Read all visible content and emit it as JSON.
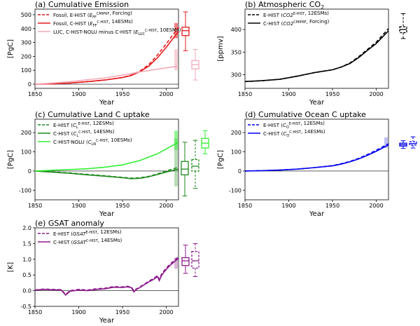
{
  "chart_data": [
    {
      "type": "line",
      "title": "(a) Cumulative Emission",
      "xlabel": "Year",
      "ylabel": "[PgC]",
      "xlim": [
        1850,
        2014
      ],
      "ylim": [
        -30,
        540
      ],
      "x_ticks": [
        1850,
        1900,
        1950,
        2000
      ],
      "y_ticks": [
        0,
        100,
        200,
        300,
        400,
        500
      ],
      "zero_line": true,
      "legend_position": "top-left",
      "series": [
        {
          "name": "Fossil, E-HIST (E_FF^CMIP6F, Forcing)",
          "color": "#e41a1c",
          "style": "dashed",
          "x": [
            1850,
            1870,
            1890,
            1910,
            1930,
            1950,
            1960,
            1970,
            1980,
            1990,
            2000,
            2014
          ],
          "y": [
            0,
            3,
            8,
            18,
            30,
            48,
            65,
            95,
            140,
            210,
            290,
            410
          ]
        },
        {
          "name": "Fossil, C-HIST (E_FF^C-HIST, 14ESMs)",
          "color": "#e41a1c",
          "style": "solid",
          "x": [
            1850,
            1870,
            1890,
            1910,
            1930,
            1950,
            1960,
            1970,
            1980,
            1990,
            2000,
            2014
          ],
          "y": [
            0,
            3,
            8,
            18,
            30,
            48,
            62,
            90,
            130,
            190,
            265,
            380
          ]
        },
        {
          "name": "LUC, C-HIST-NOLU minus C-HIST (E_LUC^C-HIST, 10ESMs)",
          "color": "#f4a9b8",
          "style": "solid",
          "x": [
            1850,
            1870,
            1890,
            1910,
            1930,
            1950,
            1970,
            1990,
            2014
          ],
          "y": [
            0,
            8,
            18,
            32,
            45,
            65,
            88,
            108,
            130
          ]
        }
      ],
      "boxes": [
        {
          "color": "#e41a1c",
          "style": "solid",
          "whisker_low": 240,
          "q1": 350,
          "median": 385,
          "q3": 410,
          "whisker_high": 520
        },
        {
          "color": "#f4a9b8",
          "style": "solid",
          "whisker_low": 30,
          "q1": 110,
          "median": 140,
          "q3": 170,
          "whisker_high": 250
        }
      ],
      "end_markers": [
        {
          "color": "#e41a1c",
          "low": 330,
          "high": 440
        },
        {
          "color": "#f4a9b8",
          "low": 100,
          "high": 250
        }
      ]
    },
    {
      "type": "line",
      "title": "(b) Atmospheric CO",
      "title_sub": "2",
      "xlabel": "Year",
      "ylabel": "[ppmv]",
      "xlim": [
        1850,
        2014
      ],
      "ylim": [
        270,
        445
      ],
      "x_ticks": [
        1850,
        1900,
        1950,
        2000
      ],
      "y_ticks": [
        300,
        350,
        400
      ],
      "zero_line": false,
      "legend_position": "top-left",
      "series": [
        {
          "name": "E-HIST (CO2^E-HIST, 12ESMs)",
          "color": "#000000",
          "style": "dashed",
          "x": [
            1850,
            1870,
            1890,
            1910,
            1930,
            1950,
            1960,
            1970,
            1980,
            1990,
            2000,
            2014
          ],
          "y": [
            285,
            287,
            290,
            297,
            305,
            311,
            317,
            326,
            340,
            356,
            372,
            402
          ]
        },
        {
          "name": "C-HIST (CO2^CMIP6F, Forcing)",
          "color": "#000000",
          "style": "solid",
          "x": [
            1850,
            1870,
            1890,
            1910,
            1930,
            1950,
            1960,
            1970,
            1980,
            1990,
            2000,
            2014
          ],
          "y": [
            285,
            287,
            290,
            297,
            305,
            311,
            317,
            325,
            338,
            354,
            369,
            397
          ]
        }
      ],
      "boxes": [
        {
          "color": "#000000",
          "style": "dashed",
          "whisker_low": 380,
          "q1": 393,
          "median": 400,
          "q3": 406,
          "whisker_high": 435
        }
      ],
      "end_markers": []
    },
    {
      "type": "line",
      "title": "(c) Cumulative Land C uptake",
      "xlabel": "Year",
      "ylabel": "[PgC]",
      "xlim": [
        1850,
        2014
      ],
      "ylim": [
        -150,
        270
      ],
      "x_ticks": [
        1850,
        1900,
        1950,
        2000
      ],
      "y_ticks": [
        -100,
        0,
        100,
        200
      ],
      "zero_line": true,
      "legend_position": "top-left",
      "series": [
        {
          "name": "E-HIST (C_L^E-HIST, 12ESMs)",
          "color": "#1e8a1e",
          "style": "dashed",
          "x": [
            1850,
            1870,
            1890,
            1910,
            1930,
            1950,
            1960,
            1970,
            1980,
            1990,
            2000,
            2014
          ],
          "y": [
            0,
            -5,
            -10,
            -18,
            -25,
            -33,
            -37,
            -35,
            -28,
            -15,
            0,
            20
          ]
        },
        {
          "name": "C-HIST (C_L^C-HIST, 14ESMs)",
          "color": "#1e8a1e",
          "style": "solid",
          "x": [
            1850,
            1870,
            1890,
            1910,
            1930,
            1950,
            1960,
            1970,
            1980,
            1990,
            2000,
            2014
          ],
          "y": [
            0,
            -6,
            -12,
            -20,
            -27,
            -35,
            -40,
            -38,
            -30,
            -18,
            -5,
            10
          ]
        },
        {
          "name": "C-HIST-NOLU (C_LN^C-HIST, 10ESMs)",
          "color": "#33ee33",
          "style": "solid",
          "x": [
            1850,
            1870,
            1890,
            1910,
            1930,
            1950,
            1970,
            1990,
            2014
          ],
          "y": [
            0,
            4,
            8,
            12,
            20,
            32,
            55,
            90,
            150
          ]
        }
      ],
      "boxes": [
        {
          "color": "#1e8a1e",
          "style": "solid",
          "whisker_low": -130,
          "q1": -20,
          "median": 10,
          "q3": 50,
          "whisker_high": 150
        },
        {
          "color": "#1e8a1e",
          "style": "dashed",
          "whisker_low": -90,
          "q1": 0,
          "median": 25,
          "q3": 60,
          "whisker_high": 160
        },
        {
          "color": "#33ee33",
          "style": "solid",
          "whisker_low": 90,
          "q1": 120,
          "median": 145,
          "q3": 170,
          "whisker_high": 210
        }
      ],
      "end_markers": [
        {
          "color": "#7fbf7f",
          "low": -80,
          "high": 170
        },
        {
          "color": "#33ee33",
          "low": 110,
          "high": 210
        }
      ]
    },
    {
      "type": "line",
      "title": "(d) Cumulative Ocean C uptake",
      "xlabel": "Year",
      "ylabel": "[PgC]",
      "xlim": [
        1850,
        2014
      ],
      "ylim": [
        -150,
        270
      ],
      "x_ticks": [
        1850,
        1900,
        1950,
        2000
      ],
      "y_ticks": [
        -100,
        0,
        100,
        200
      ],
      "zero_line": true,
      "legend_position": "top-left",
      "series": [
        {
          "name": "E-HIST (C_O^E-HIST, 12ESMs)",
          "color": "#0000ee",
          "style": "dashed",
          "x": [
            1850,
            1870,
            1890,
            1910,
            1930,
            1950,
            1960,
            1970,
            1980,
            1990,
            2000,
            2014
          ],
          "y": [
            0,
            2,
            5,
            10,
            18,
            28,
            38,
            50,
            66,
            86,
            108,
            142
          ]
        },
        {
          "name": "C-HIST (C_O^C-HIST, 14ESMs)",
          "color": "#0000ee",
          "style": "solid",
          "x": [
            1850,
            1870,
            1890,
            1910,
            1930,
            1950,
            1960,
            1970,
            1980,
            1990,
            2000,
            2014
          ],
          "y": [
            0,
            2,
            5,
            10,
            18,
            27,
            36,
            48,
            63,
            82,
            103,
            136
          ]
        }
      ],
      "boxes": [
        {
          "color": "#0000ee",
          "style": "solid",
          "whisker_low": 118,
          "q1": 130,
          "median": 137,
          "q3": 145,
          "whisker_high": 158
        },
        {
          "color": "#0000ee",
          "style": "dashed",
          "whisker_low": 120,
          "q1": 135,
          "median": 143,
          "q3": 153,
          "whisker_high": 178
        }
      ],
      "end_markers": [
        {
          "color": "#8c8cee",
          "low": 120,
          "high": 175
        }
      ]
    },
    {
      "type": "line",
      "title": "(e) GSAT anomaly",
      "xlabel": "Year",
      "ylabel": "[K]",
      "xlim": [
        1850,
        2014
      ],
      "ylim": [
        -0.5,
        2.0
      ],
      "x_ticks": [
        1850,
        1900,
        1950,
        2000
      ],
      "y_ticks": [
        -0.5,
        0.0,
        0.5,
        1.0,
        1.5,
        2.0
      ],
      "zero_line": true,
      "legend_position": "top-left",
      "series": [
        {
          "name": "E-HIST (GSAT^E-HIST, 12ESMs)",
          "color": "#8b1a8b",
          "style": "dashed",
          "x": [
            1850,
            1860,
            1870,
            1880,
            1885,
            1890,
            1900,
            1910,
            1920,
            1930,
            1940,
            1950,
            1955,
            1960,
            1963,
            1966,
            1970,
            1980,
            1985,
            1990,
            1992,
            1995,
            2000,
            2005,
            2010,
            2014
          ],
          "y": [
            0.02,
            0.05,
            0.04,
            0.03,
            -0.12,
            0.0,
            0.04,
            0.02,
            0.06,
            0.08,
            0.13,
            0.12,
            0.14,
            0.12,
            0.0,
            0.06,
            0.12,
            0.3,
            0.38,
            0.48,
            0.36,
            0.55,
            0.72,
            0.86,
            0.98,
            1.08
          ]
        },
        {
          "name": "C-HIST (GSAT^C-HIST, 14ESMs)",
          "color": "#8b1a8b",
          "style": "solid",
          "x": [
            1850,
            1860,
            1870,
            1880,
            1885,
            1890,
            1900,
            1910,
            1920,
            1930,
            1940,
            1950,
            1955,
            1960,
            1963,
            1966,
            1970,
            1980,
            1985,
            1990,
            1992,
            1995,
            2000,
            2005,
            2010,
            2014
          ],
          "y": [
            0.02,
            0.04,
            0.03,
            0.02,
            -0.14,
            -0.02,
            0.02,
            0.0,
            0.04,
            0.06,
            0.11,
            0.1,
            0.12,
            0.1,
            -0.04,
            0.04,
            0.1,
            0.28,
            0.35,
            0.45,
            0.32,
            0.5,
            0.68,
            0.82,
            0.94,
            1.03
          ]
        }
      ],
      "boxes": [
        {
          "color": "#8b1a8b",
          "style": "solid",
          "whisker_low": 0.55,
          "q1": 0.8,
          "median": 0.95,
          "q3": 1.05,
          "whisker_high": 1.45
        },
        {
          "color": "#8b1a8b",
          "style": "dashed",
          "whisker_low": 0.45,
          "q1": 0.72,
          "median": 0.95,
          "q3": 1.25,
          "whisker_high": 1.5
        }
      ],
      "end_markers": [
        {
          "color": "#b57ab5",
          "low": 0.7,
          "high": 1.05
        }
      ]
    }
  ]
}
